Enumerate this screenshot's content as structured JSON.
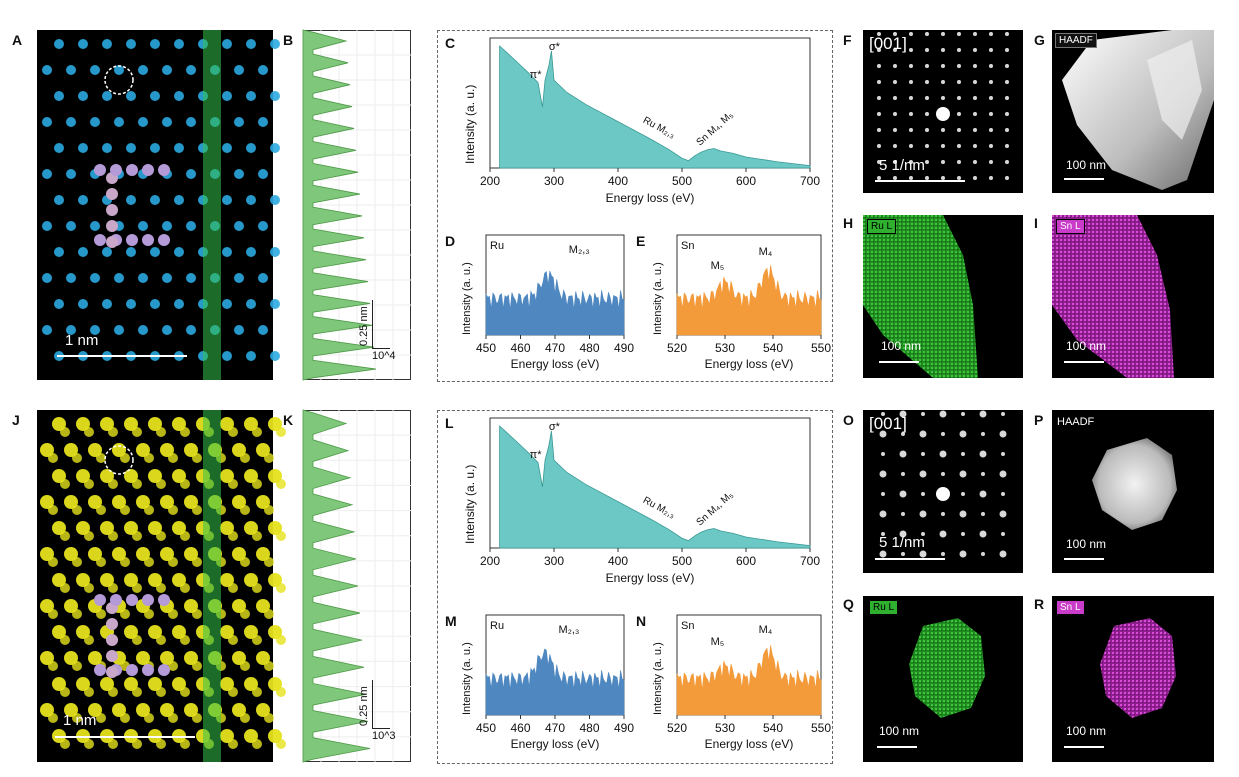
{
  "colors": {
    "spectrum_fill": "#6cc8c4",
    "ru_fill": "#4f88c0",
    "sn_fill": "#f39a3a",
    "profile_fill": "#7fc77a",
    "ru_map": "#2fb02f",
    "sn_map": "#c93bc9",
    "atom_cyan": "#2aa8e0",
    "atom_yellow": "#e6e21c"
  },
  "top": {
    "panel_a": {
      "label": "A",
      "scale": "1 nm"
    },
    "panel_b": {
      "label": "B",
      "scale_nm": "0.25 nm",
      "scale_int": "10^4"
    },
    "panel_c": {
      "label": "C",
      "pi": "π*",
      "sigma": "σ*",
      "ru_edge": "Ru M₂,₃",
      "sn_edge": "Sn M₄, M₅"
    },
    "panel_d": {
      "label": "D",
      "element": "Ru",
      "edge": "M₂,₃"
    },
    "panel_e": {
      "label": "E",
      "element": "Sn",
      "edge1": "M₅",
      "edge2": "M₄"
    },
    "panel_f": {
      "label": "F",
      "zone": "[001]",
      "scale": "5 1/nm"
    },
    "panel_g": {
      "label": "G",
      "tag": "HAADF",
      "scale": "100 nm"
    },
    "panel_h": {
      "label": "H",
      "tag": "Ru L",
      "scale": "100 nm"
    },
    "panel_i": {
      "label": "I",
      "tag": "Sn L",
      "scale": "100 nm"
    }
  },
  "bottom": {
    "panel_j": {
      "label": "J",
      "scale": "1 nm"
    },
    "panel_k": {
      "label": "K",
      "scale_nm": "0.25 nm",
      "scale_int": "10^3"
    },
    "panel_l": {
      "label": "L",
      "pi": "π*",
      "sigma": "σ*",
      "ru_edge": "Ru M₂,₃",
      "sn_edge": "Sn M₄, M₅"
    },
    "panel_m": {
      "label": "M",
      "element": "Ru",
      "edge": "M₂,₃"
    },
    "panel_n": {
      "label": "N",
      "element": "Sn",
      "edge1": "M₅",
      "edge2": "M₄"
    },
    "panel_o": {
      "label": "O",
      "zone": "[001]",
      "scale": "5 1/nm"
    },
    "panel_p": {
      "label": "P",
      "tag": "HAADF",
      "scale": "100 nm"
    },
    "panel_q": {
      "label": "Q",
      "tag": "Ru L",
      "scale": "100 nm"
    },
    "panel_r": {
      "label": "R",
      "tag": "Sn L",
      "scale": "100 nm"
    }
  },
  "axes": {
    "ylabel": "Intensity (a. u.)",
    "xlabel_ev": "Energy loss (eV)"
  },
  "chart_data": [
    {
      "type": "area",
      "panel": "C",
      "xlabel": "Energy loss (eV)",
      "ylabel": "Intensity (a. u.)",
      "xlim": [
        200,
        700
      ],
      "xticks": [
        200,
        300,
        400,
        500,
        600,
        700
      ],
      "x": [
        215,
        240,
        260,
        275,
        282,
        286,
        292,
        296,
        300,
        320,
        350,
        400,
        450,
        480,
        500,
        510,
        520,
        530,
        540,
        550,
        560,
        580,
        600,
        650,
        700
      ],
      "y": [
        1.0,
        0.88,
        0.78,
        0.7,
        0.5,
        0.72,
        0.84,
        0.96,
        0.72,
        0.62,
        0.52,
        0.38,
        0.24,
        0.15,
        0.08,
        0.06,
        0.1,
        0.13,
        0.15,
        0.16,
        0.14,
        0.12,
        0.09,
        0.05,
        0.02
      ]
    },
    {
      "type": "area",
      "panel": "D",
      "xlabel": "Energy loss (eV)",
      "ylabel": "Intensity (a. u.)",
      "xlim": [
        450,
        490
      ],
      "xticks": [
        450,
        460,
        470,
        480,
        490
      ]
    },
    {
      "type": "area",
      "panel": "E",
      "xlabel": "Energy loss (eV)",
      "ylabel": "Intensity (a. u.)",
      "xlim": [
        520,
        550
      ],
      "xticks": [
        520,
        530,
        540,
        550
      ]
    },
    {
      "type": "area",
      "panel": "L",
      "xlabel": "Energy loss (eV)",
      "ylabel": "Intensity (a. u.)",
      "xlim": [
        200,
        700
      ],
      "xticks": [
        200,
        300,
        400,
        500,
        600,
        700
      ]
    },
    {
      "type": "area",
      "panel": "M",
      "xlabel": "Energy loss (eV)",
      "ylabel": "Intensity (a. u.)",
      "xlim": [
        450,
        490
      ],
      "xticks": [
        450,
        460,
        470,
        480,
        490
      ]
    },
    {
      "type": "area",
      "panel": "N",
      "xlabel": "Energy loss (eV)",
      "ylabel": "Intensity (a. u.)",
      "xlim": [
        520,
        550
      ],
      "xticks": [
        520,
        530,
        540,
        550
      ]
    }
  ]
}
